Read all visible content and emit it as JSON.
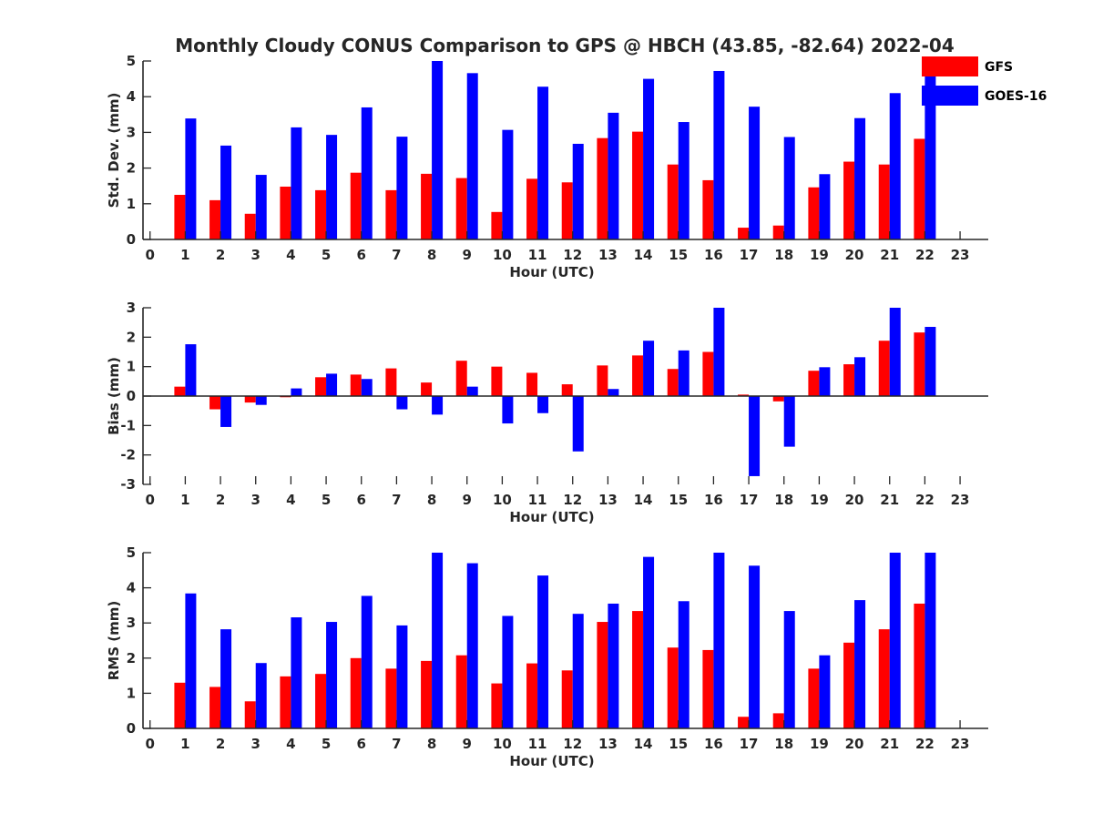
{
  "title": "Monthly Cloudy CONUS Comparison to GPS @ HBCH (43.85, -82.64) 2022-04",
  "colors": {
    "gfs": "#ff0000",
    "goes": "#0000ff",
    "axis": "#262626"
  },
  "legend": {
    "placement": "top-right",
    "items": [
      "GFS",
      "GOES-16"
    ]
  },
  "chart_data": [
    {
      "type": "bar",
      "ylabel": "Std. Dev. (mm)",
      "xlabel": "Hour (UTC)",
      "ylim": [
        0,
        5
      ],
      "yticks": [
        0,
        1,
        2,
        3,
        4,
        5
      ],
      "xlim": [
        -0.2,
        23.8
      ],
      "x": [
        0,
        1,
        2,
        3,
        4,
        5,
        6,
        7,
        8,
        9,
        10,
        11,
        12,
        13,
        14,
        15,
        16,
        17,
        18,
        19,
        20,
        21,
        22,
        23
      ],
      "grid": false,
      "series": [
        {
          "name": "GFS",
          "values": [
            null,
            1.25,
            1.1,
            0.72,
            1.48,
            1.38,
            1.87,
            1.38,
            1.84,
            1.72,
            0.77,
            1.7,
            1.6,
            2.84,
            3.02,
            2.1,
            1.66,
            0.33,
            0.39,
            1.46,
            2.18,
            2.1,
            2.82,
            null
          ]
        },
        {
          "name": "GOES-16",
          "values": [
            null,
            3.39,
            2.63,
            1.81,
            3.14,
            2.93,
            3.7,
            2.88,
            5.0,
            4.66,
            3.07,
            4.28,
            2.68,
            3.55,
            4.5,
            3.29,
            4.72,
            3.72,
            2.87,
            1.83,
            3.4,
            4.1,
            5.0,
            null
          ]
        }
      ]
    },
    {
      "type": "bar",
      "ylabel": "Bias (mm)",
      "xlabel": "Hour (UTC)",
      "ylim": [
        -3,
        3
      ],
      "yticks": [
        -3,
        -2,
        -1,
        0,
        1,
        2,
        3
      ],
      "xlim": [
        -0.2,
        23.8
      ],
      "x": [
        0,
        1,
        2,
        3,
        4,
        5,
        6,
        7,
        8,
        9,
        10,
        11,
        12,
        13,
        14,
        15,
        16,
        17,
        18,
        19,
        20,
        21,
        22,
        23
      ],
      "grid": false,
      "series": [
        {
          "name": "GFS",
          "values": [
            null,
            0.32,
            -0.45,
            -0.22,
            -0.04,
            0.64,
            0.73,
            0.94,
            0.46,
            1.2,
            1.0,
            0.79,
            0.4,
            1.04,
            1.38,
            0.92,
            1.5,
            0.05,
            -0.18,
            0.86,
            1.08,
            1.88,
            2.16,
            null
          ]
        },
        {
          "name": "GOES-16",
          "values": [
            null,
            1.76,
            -1.05,
            -0.3,
            0.26,
            0.76,
            0.58,
            -0.45,
            -0.63,
            0.32,
            -0.93,
            -0.58,
            -1.88,
            0.24,
            1.88,
            1.55,
            3.0,
            -2.72,
            -1.72,
            0.98,
            1.32,
            3.0,
            2.35,
            null
          ]
        }
      ]
    },
    {
      "type": "bar",
      "ylabel": "RMS (mm)",
      "xlabel": "Hour (UTC)",
      "ylim": [
        0,
        5
      ],
      "yticks": [
        0,
        1,
        2,
        3,
        4,
        5
      ],
      "xlim": [
        -0.2,
        23.8
      ],
      "x": [
        0,
        1,
        2,
        3,
        4,
        5,
        6,
        7,
        8,
        9,
        10,
        11,
        12,
        13,
        14,
        15,
        16,
        17,
        18,
        19,
        20,
        21,
        22,
        23
      ],
      "grid": false,
      "series": [
        {
          "name": "GFS",
          "values": [
            null,
            1.3,
            1.18,
            0.77,
            1.48,
            1.55,
            2.0,
            1.7,
            1.92,
            2.08,
            1.28,
            1.85,
            1.65,
            3.03,
            3.34,
            2.3,
            2.23,
            0.33,
            0.43,
            1.7,
            2.44,
            2.82,
            3.55,
            null
          ]
        },
        {
          "name": "GOES-16",
          "values": [
            null,
            3.84,
            2.82,
            1.86,
            3.16,
            3.03,
            3.77,
            2.93,
            5.0,
            4.7,
            3.2,
            4.35,
            3.26,
            3.55,
            4.88,
            3.62,
            5.0,
            4.63,
            3.34,
            2.08,
            3.65,
            5.0,
            5.0,
            null
          ]
        }
      ]
    }
  ]
}
